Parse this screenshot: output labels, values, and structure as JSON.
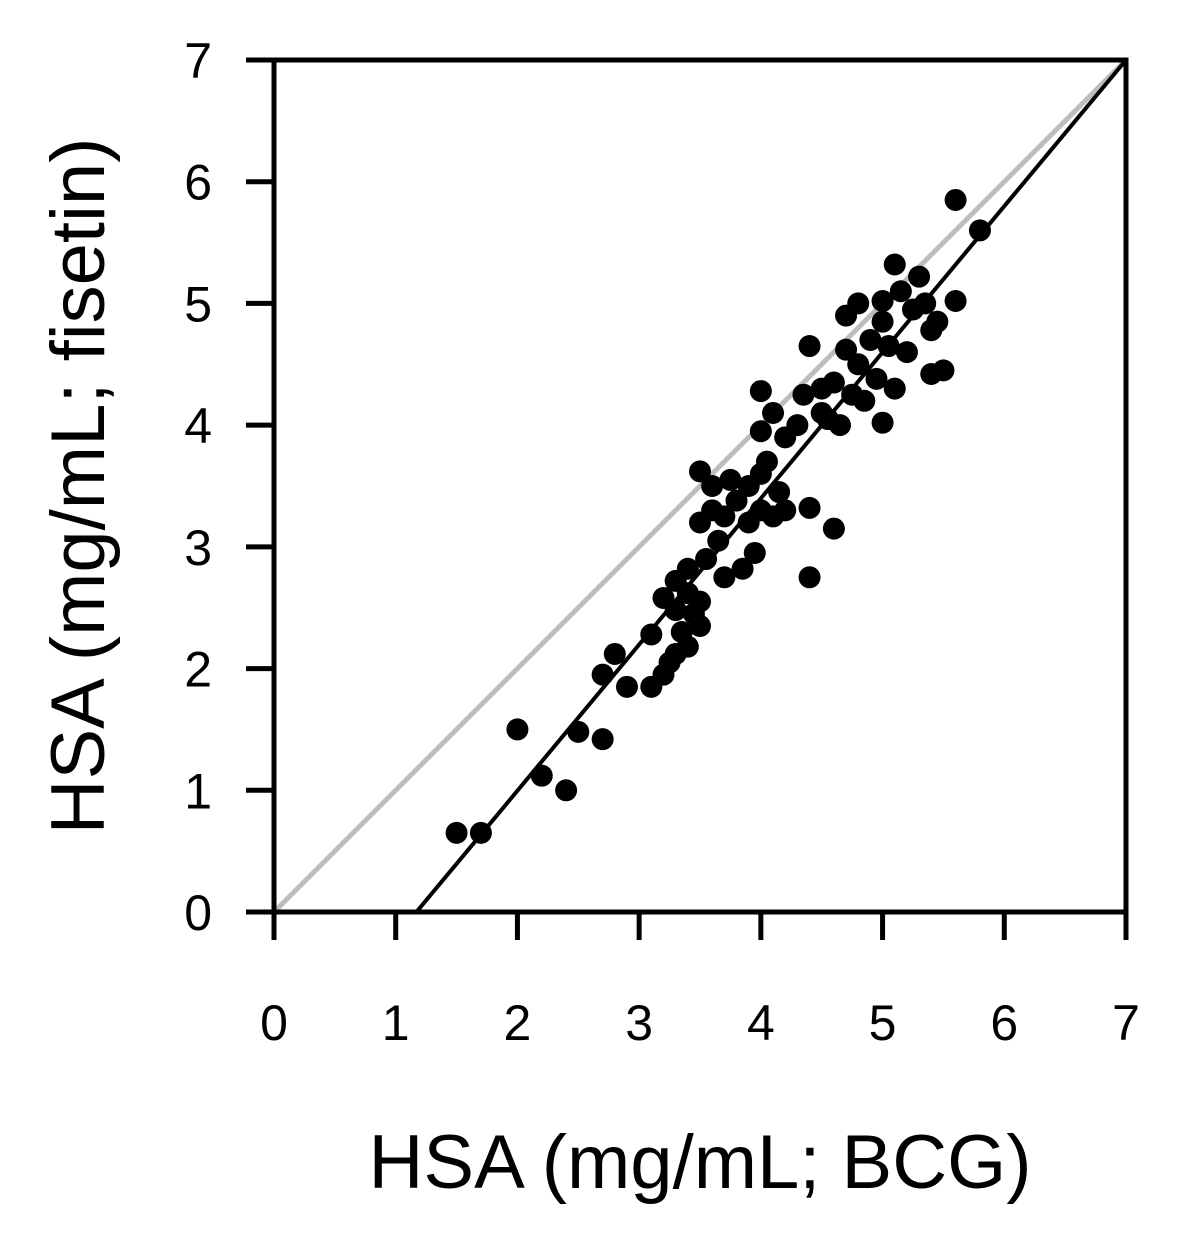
{
  "chart_data": {
    "type": "scatter",
    "xlabel": "HSA (mg/mL; BCG)",
    "ylabel": "HSA (mg/mL; fisetin)",
    "xlim": [
      0,
      7
    ],
    "ylim": [
      0,
      7
    ],
    "xticks": [
      "0",
      "1",
      "2",
      "3",
      "4",
      "5",
      "6",
      "7"
    ],
    "yticks": [
      "0",
      "1",
      "2",
      "3",
      "4",
      "5",
      "6",
      "7"
    ],
    "grid": false,
    "legend": "none",
    "colors": {
      "points": "#000000",
      "identity_line": "#bdbdbd",
      "fit_line": "#000000"
    },
    "identity_line": {
      "x": [
        0,
        7
      ],
      "y": [
        0,
        7
      ]
    },
    "fit_line": {
      "x": [
        1.17,
        7
      ],
      "y": [
        0,
        7
      ]
    },
    "points": [
      [
        1.5,
        0.65
      ],
      [
        1.7,
        0.65
      ],
      [
        2.0,
        1.5
      ],
      [
        2.2,
        1.12
      ],
      [
        2.4,
        1.0
      ],
      [
        2.5,
        1.48
      ],
      [
        2.7,
        1.42
      ],
      [
        2.7,
        1.95
      ],
      [
        2.8,
        2.12
      ],
      [
        2.9,
        1.85
      ],
      [
        3.1,
        1.85
      ],
      [
        3.1,
        2.28
      ],
      [
        3.2,
        1.95
      ],
      [
        3.2,
        2.58
      ],
      [
        3.25,
        2.05
      ],
      [
        3.3,
        2.12
      ],
      [
        3.3,
        2.48
      ],
      [
        3.3,
        2.72
      ],
      [
        3.35,
        2.3
      ],
      [
        3.4,
        2.18
      ],
      [
        3.4,
        2.62
      ],
      [
        3.4,
        2.82
      ],
      [
        3.45,
        2.45
      ],
      [
        3.5,
        2.35
      ],
      [
        3.5,
        2.55
      ],
      [
        3.5,
        3.2
      ],
      [
        3.5,
        3.62
      ],
      [
        3.55,
        2.9
      ],
      [
        3.6,
        3.3
      ],
      [
        3.6,
        3.5
      ],
      [
        3.65,
        3.05
      ],
      [
        3.7,
        2.75
      ],
      [
        3.7,
        3.25
      ],
      [
        3.75,
        3.55
      ],
      [
        3.8,
        3.38
      ],
      [
        3.85,
        2.82
      ],
      [
        3.9,
        3.2
      ],
      [
        3.9,
        3.5
      ],
      [
        3.95,
        2.95
      ],
      [
        4.0,
        3.3
      ],
      [
        4.0,
        3.6
      ],
      [
        4.0,
        3.95
      ],
      [
        4.0,
        4.28
      ],
      [
        4.05,
        3.7
      ],
      [
        4.1,
        3.25
      ],
      [
        4.1,
        4.1
      ],
      [
        4.15,
        3.45
      ],
      [
        4.2,
        3.9
      ],
      [
        4.2,
        3.3
      ],
      [
        4.3,
        4.0
      ],
      [
        4.35,
        4.25
      ],
      [
        4.4,
        3.32
      ],
      [
        4.4,
        2.75
      ],
      [
        4.4,
        4.65
      ],
      [
        4.5,
        4.1
      ],
      [
        4.5,
        4.3
      ],
      [
        4.55,
        4.05
      ],
      [
        4.6,
        4.35
      ],
      [
        4.6,
        3.15
      ],
      [
        4.65,
        4.0
      ],
      [
        4.7,
        4.62
      ],
      [
        4.7,
        4.9
      ],
      [
        4.75,
        4.25
      ],
      [
        4.8,
        4.5
      ],
      [
        4.8,
        5.0
      ],
      [
        4.85,
        4.2
      ],
      [
        4.9,
        4.7
      ],
      [
        4.95,
        4.38
      ],
      [
        5.0,
        4.85
      ],
      [
        5.0,
        4.02
      ],
      [
        5.0,
        5.02
      ],
      [
        5.05,
        4.65
      ],
      [
        5.1,
        5.32
      ],
      [
        5.1,
        4.3
      ],
      [
        5.15,
        5.1
      ],
      [
        5.2,
        4.6
      ],
      [
        5.25,
        4.95
      ],
      [
        5.3,
        5.22
      ],
      [
        5.35,
        5.0
      ],
      [
        5.4,
        4.42
      ],
      [
        5.4,
        4.78
      ],
      [
        5.45,
        4.85
      ],
      [
        5.5,
        4.45
      ],
      [
        5.6,
        5.02
      ],
      [
        5.6,
        5.85
      ],
      [
        5.8,
        5.6
      ]
    ]
  }
}
